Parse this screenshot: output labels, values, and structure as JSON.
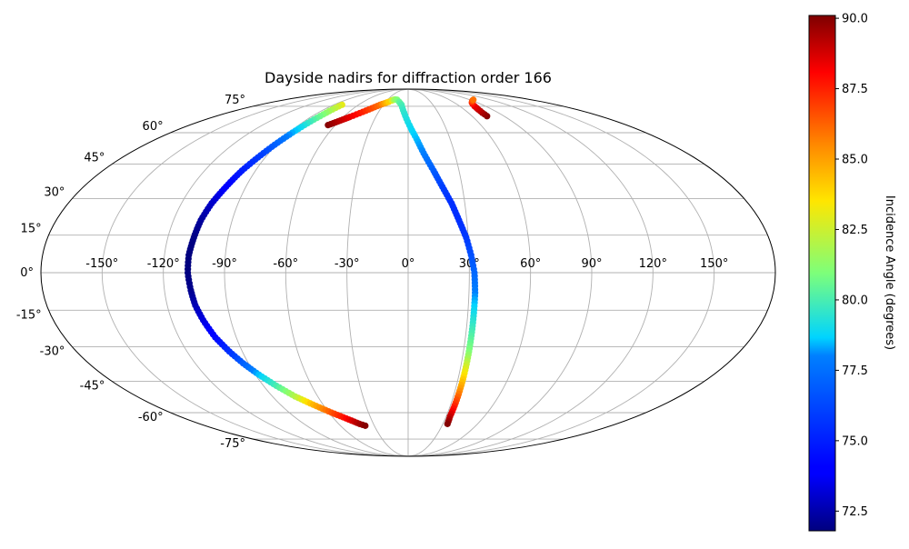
{
  "chart_data": {
    "type": "scatter",
    "projection": "mollweide",
    "title": "Dayside nadirs for diffraction order 166",
    "grid": true,
    "xlim": [
      -180,
      180
    ],
    "ylim": [
      -90,
      90
    ],
    "lon_ticks": [
      -150,
      -120,
      -90,
      -60,
      -30,
      0,
      30,
      60,
      90,
      120,
      150
    ],
    "lon_tick_labels": [
      "-150°",
      "-120°",
      "-90°",
      "-60°",
      "-30°",
      "0°",
      "30°",
      "60°",
      "90°",
      "120°",
      "150°"
    ],
    "lat_ticks": [
      -75,
      -60,
      -45,
      -30,
      -15,
      0,
      15,
      30,
      45,
      60,
      75
    ],
    "lat_tick_labels": [
      "-75°",
      "-60°",
      "-45°",
      "-30°",
      "-15°",
      "0°",
      "15°",
      "30°",
      "45°",
      "60°",
      "75°"
    ],
    "colormap": "jet",
    "colorbar": {
      "label": "Incidence Angle (degrees)",
      "range": [
        71.8,
        90.1
      ],
      "ticks": [
        72.5,
        75.0,
        77.5,
        80.0,
        82.5,
        85.0,
        87.5,
        90.0
      ],
      "tick_labels": [
        "72.5",
        "75.0",
        "77.5",
        "80.0",
        "82.5",
        "85.0",
        "87.5",
        "90.0"
      ]
    },
    "series": [
      {
        "points": [
          [
            -80,
            76,
            83
          ],
          [
            -82,
            70,
            81
          ],
          [
            -86,
            63,
            79
          ],
          [
            -90,
            56,
            77.5
          ],
          [
            -94,
            49,
            76
          ],
          [
            -98,
            42,
            75
          ],
          [
            -101,
            35,
            74
          ],
          [
            -104,
            28,
            73
          ],
          [
            -106,
            21,
            72.3
          ],
          [
            -107,
            14,
            71.9
          ],
          [
            -108,
            7,
            71.8
          ],
          [
            -108,
            0,
            71.8
          ],
          [
            -107,
            -7,
            72
          ],
          [
            -106,
            -13,
            72.6
          ],
          [
            -104,
            -19,
            73.3
          ],
          [
            -101,
            -26,
            74.2
          ],
          [
            -97,
            -32,
            75.5
          ],
          [
            -93,
            -37,
            77
          ],
          [
            -88,
            -42,
            78.5
          ],
          [
            -82,
            -47,
            80
          ],
          [
            -75,
            -52,
            82
          ],
          [
            -67,
            -56,
            84.5
          ],
          [
            -58,
            -60,
            86.5
          ],
          [
            -50,
            -63,
            88
          ],
          [
            -42,
            -66,
            89.5
          ],
          [
            -38,
            -67,
            90
          ]
        ]
      },
      {
        "points": [
          [
            -66,
            64,
            90
          ],
          [
            -62,
            65.5,
            89.5
          ],
          [
            -58,
            67,
            89
          ],
          [
            -54,
            68.5,
            88.5
          ],
          [
            -50,
            70,
            88
          ],
          [
            -46,
            71.5,
            87.5
          ],
          [
            -42,
            73,
            87
          ],
          [
            -38,
            74.5,
            86.5
          ],
          [
            -34,
            76,
            86
          ],
          [
            -30,
            77,
            85
          ],
          [
            -26,
            78,
            84
          ],
          [
            -23,
            79,
            83
          ],
          [
            -21,
            79.5,
            82
          ],
          [
            -19,
            79.7,
            81.5
          ],
          [
            -16,
            79.5,
            81
          ],
          [
            -12,
            78,
            80.5
          ],
          [
            -8,
            76,
            80
          ],
          [
            -4,
            71,
            79.5
          ],
          [
            1,
            64,
            79
          ],
          [
            6,
            57,
            78.5
          ],
          [
            10,
            50,
            78
          ],
          [
            15,
            42,
            77
          ],
          [
            19,
            35,
            76
          ],
          [
            23,
            28,
            75.5
          ],
          [
            26,
            21,
            75.5
          ],
          [
            29,
            14,
            75.8
          ],
          [
            31,
            7,
            76.5
          ],
          [
            32.5,
            0,
            77.2
          ],
          [
            33,
            -8,
            78
          ],
          [
            33,
            -16,
            79
          ],
          [
            33,
            -24,
            80
          ],
          [
            33,
            -32,
            81
          ],
          [
            33,
            -40,
            83
          ],
          [
            33,
            -48,
            85
          ],
          [
            33,
            -55,
            87
          ],
          [
            33,
            -62,
            89
          ],
          [
            34,
            -66,
            90
          ]
        ]
      },
      {
        "points": [
          [
            74,
            69,
            90
          ],
          [
            74,
            71,
            89.5
          ],
          [
            75,
            73,
            89
          ],
          [
            77,
            75,
            88.5
          ],
          [
            80,
            76.5,
            88
          ],
          [
            83,
            77.5,
            87.5
          ],
          [
            87,
            78.3,
            87
          ],
          [
            91,
            79,
            86.5
          ],
          [
            95,
            79.5,
            86
          ]
        ]
      }
    ]
  }
}
